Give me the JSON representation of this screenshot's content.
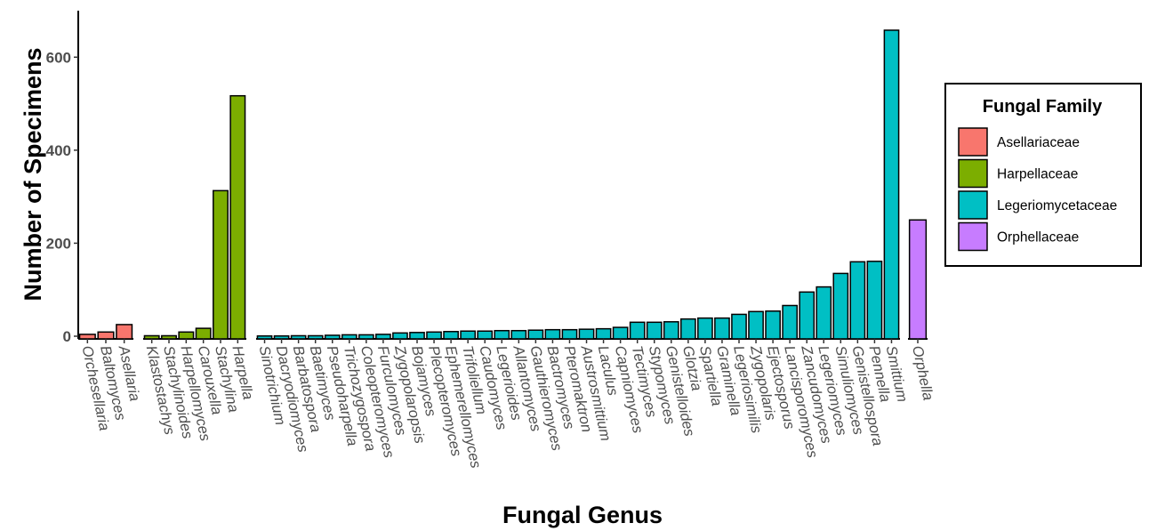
{
  "chart_data": {
    "type": "bar",
    "xlabel": "Fungal Genus",
    "ylabel": "Number of Specimens",
    "ylim": [
      0,
      700
    ],
    "yticks": [
      0,
      200,
      400,
      600
    ],
    "grid": false,
    "legend": {
      "title": "Fungal Family",
      "placement": "right",
      "entries": [
        {
          "name": "Asellariaceae",
          "color": "#F8766D"
        },
        {
          "name": "Harpellaceae",
          "color": "#7CAE00"
        },
        {
          "name": "Legeriomycetaceae",
          "color": "#00BFC4"
        },
        {
          "name": "Orphellaceae",
          "color": "#C77CFF"
        }
      ]
    },
    "panels": [
      {
        "family": "Asellariaceae",
        "color": "#F8766D",
        "categories": [
          "Orchesellaria",
          "Baltomyces",
          "Asellaria"
        ],
        "values": [
          4,
          9,
          25
        ]
      },
      {
        "family": "Harpellaceae",
        "color": "#7CAE00",
        "categories": [
          "Klastostachys",
          "Stachylinoides",
          "Harpellomyces",
          "Carouxella",
          "Stachylina",
          "Harpella"
        ],
        "values": [
          1,
          1,
          9,
          17,
          313,
          517
        ]
      },
      {
        "family": "Legeriomycetaceae",
        "color": "#00BFC4",
        "categories": [
          "Sinotrichium",
          "Dacryodiomyces",
          "Barbatospora",
          "Baetimyces",
          "Pseudoharpella",
          "Trichozygospora",
          "Coleopteromyces",
          "Furculomyces",
          "Zygopolaropsis",
          "Bojamyces",
          "Plecopteromyces",
          "Ephemerellomyces",
          "Trifoliellum",
          "Caudomyces",
          "Legerioides",
          "Allantomyces",
          "Gauthieromyces",
          "Bactromyces",
          "Pteromaktron",
          "Austrosmittium",
          "Laculus",
          "Capniomyces",
          "Tectimyces",
          "Stypomyces",
          "Genistelloides",
          "Glotzia",
          "Spartiella",
          "Graminella",
          "Legeriosimilis",
          "Zygopolaris",
          "Ejectosporus",
          "Lancisporomyces",
          "Zancudomyces",
          "Legeriomyces",
          "Simuliomyces",
          "Genistellospora",
          "Pennella",
          "Smittium"
        ],
        "values": [
          0.5,
          0.5,
          1,
          1,
          2,
          3,
          3,
          4,
          7,
          8,
          9,
          10,
          11,
          11,
          12,
          12,
          13,
          14,
          14,
          15,
          16,
          19,
          30,
          30,
          31,
          37,
          39,
          39,
          47,
          53,
          54,
          66,
          95,
          106,
          135,
          160,
          161,
          658
        ]
      },
      {
        "family": "Orphellaceae",
        "color": "#C77CFF",
        "categories": [
          "Orphella"
        ],
        "values": [
          250
        ]
      }
    ]
  }
}
